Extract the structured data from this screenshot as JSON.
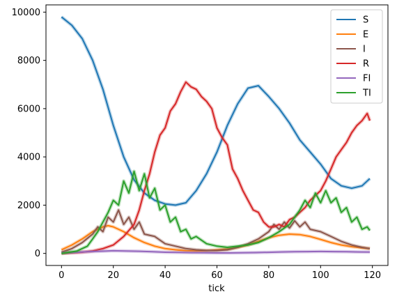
{
  "chart_data": {
    "type": "line",
    "title": "",
    "xlabel": "tick",
    "ylabel": "",
    "xlim": [
      -6,
      126
    ],
    "ylim": [
      -500,
      10300
    ],
    "xticks": [
      0,
      20,
      40,
      60,
      80,
      100,
      120
    ],
    "yticks": [
      0,
      2000,
      4000,
      6000,
      8000,
      10000
    ],
    "grid": false,
    "legend_position": "top-right",
    "series": [
      {
        "name": "S",
        "color": "#1f77b4",
        "x": [
          0,
          4,
          8,
          12,
          16,
          20,
          24,
          28,
          32,
          36,
          40,
          44,
          48,
          52,
          56,
          60,
          64,
          68,
          72,
          76,
          80,
          84,
          88,
          92,
          96,
          100,
          104,
          108,
          112,
          116,
          119
        ],
        "y": [
          9800,
          9450,
          8900,
          8000,
          6800,
          5300,
          4000,
          3050,
          2500,
          2200,
          2050,
          2000,
          2100,
          2600,
          3300,
          4200,
          5300,
          6200,
          6850,
          6950,
          6500,
          6000,
          5400,
          4700,
          4200,
          3700,
          3100,
          2800,
          2700,
          2800,
          3100
        ]
      },
      {
        "name": "E",
        "color": "#ff7f0e",
        "x": [
          0,
          4,
          8,
          12,
          16,
          18,
          20,
          24,
          28,
          32,
          36,
          40,
          44,
          48,
          52,
          56,
          60,
          64,
          68,
          72,
          76,
          80,
          84,
          88,
          92,
          96,
          100,
          104,
          108,
          112,
          116,
          119
        ],
        "y": [
          150,
          350,
          600,
          900,
          1100,
          1150,
          1100,
          900,
          650,
          450,
          300,
          200,
          150,
          110,
          100,
          110,
          140,
          180,
          250,
          350,
          500,
          650,
          750,
          800,
          780,
          700,
          580,
          450,
          350,
          280,
          230,
          200
        ]
      },
      {
        "name": "I",
        "color": "#8c564b",
        "x": [
          0,
          4,
          8,
          12,
          14,
          16,
          18,
          20,
          22,
          24,
          26,
          28,
          30,
          32,
          36,
          40,
          44,
          48,
          52,
          56,
          60,
          64,
          68,
          72,
          76,
          80,
          82,
          84,
          86,
          88,
          90,
          92,
          94,
          96,
          100,
          104,
          108,
          112,
          116,
          119
        ],
        "y": [
          50,
          200,
          450,
          800,
          1100,
          900,
          1500,
          1300,
          1800,
          1200,
          1500,
          1000,
          1300,
          800,
          700,
          400,
          300,
          200,
          150,
          120,
          120,
          150,
          250,
          400,
          600,
          900,
          1200,
          1000,
          1300,
          1050,
          1350,
          1100,
          1300,
          1000,
          900,
          700,
          500,
          350,
          250,
          200
        ]
      },
      {
        "name": "R",
        "color": "#d62728",
        "x": [
          0,
          8,
          12,
          16,
          20,
          24,
          28,
          30,
          32,
          34,
          36,
          38,
          40,
          42,
          44,
          46,
          48,
          50,
          52,
          54,
          56,
          58,
          60,
          62,
          64,
          66,
          68,
          70,
          72,
          74,
          76,
          78,
          80,
          82,
          84,
          86,
          88,
          90,
          92,
          94,
          96,
          98,
          100,
          102,
          104,
          106,
          108,
          110,
          112,
          114,
          116,
          118,
          119
        ],
        "y": [
          0,
          50,
          100,
          200,
          350,
          700,
          1200,
          1800,
          2600,
          3300,
          4200,
          4900,
          5200,
          5900,
          6200,
          6700,
          7100,
          6900,
          6800,
          6500,
          6300,
          6000,
          5200,
          4800,
          4500,
          3500,
          3100,
          2600,
          2200,
          1800,
          1700,
          1300,
          1100,
          1100,
          1200,
          1100,
          1400,
          1500,
          1700,
          1900,
          2200,
          2400,
          2600,
          3000,
          3500,
          4000,
          4300,
          4600,
          5000,
          5300,
          5500,
          5800,
          5500
        ]
      },
      {
        "name": "FI",
        "color": "#9467bd",
        "x": [
          0,
          5,
          10,
          15,
          20,
          25,
          30,
          35,
          40,
          45,
          50,
          55,
          60,
          65,
          70,
          75,
          80,
          85,
          90,
          95,
          100,
          105,
          110,
          115,
          119
        ],
        "y": [
          20,
          40,
          70,
          90,
          110,
          100,
          90,
          70,
          50,
          40,
          30,
          25,
          20,
          20,
          25,
          35,
          45,
          60,
          70,
          75,
          80,
          75,
          70,
          60,
          55
        ]
      },
      {
        "name": "TI",
        "color": "#2ca02c",
        "x": [
          0,
          6,
          10,
          12,
          14,
          16,
          18,
          20,
          22,
          24,
          26,
          28,
          30,
          32,
          34,
          36,
          38,
          40,
          42,
          44,
          46,
          48,
          50,
          52,
          56,
          60,
          64,
          68,
          72,
          76,
          80,
          84,
          88,
          90,
          92,
          94,
          96,
          98,
          100,
          102,
          104,
          106,
          108,
          110,
          112,
          114,
          116,
          118,
          119
        ],
        "y": [
          0,
          100,
          300,
          600,
          900,
          1300,
          1700,
          2200,
          2000,
          3000,
          2500,
          3400,
          2600,
          3300,
          2300,
          2700,
          1800,
          2000,
          1300,
          1500,
          900,
          1000,
          600,
          700,
          400,
          300,
          250,
          300,
          350,
          450,
          650,
          900,
          1200,
          1500,
          1800,
          2200,
          1900,
          2500,
          2100,
          2600,
          2100,
          2300,
          1700,
          1900,
          1300,
          1500,
          1000,
          1100,
          950
        ]
      }
    ]
  }
}
